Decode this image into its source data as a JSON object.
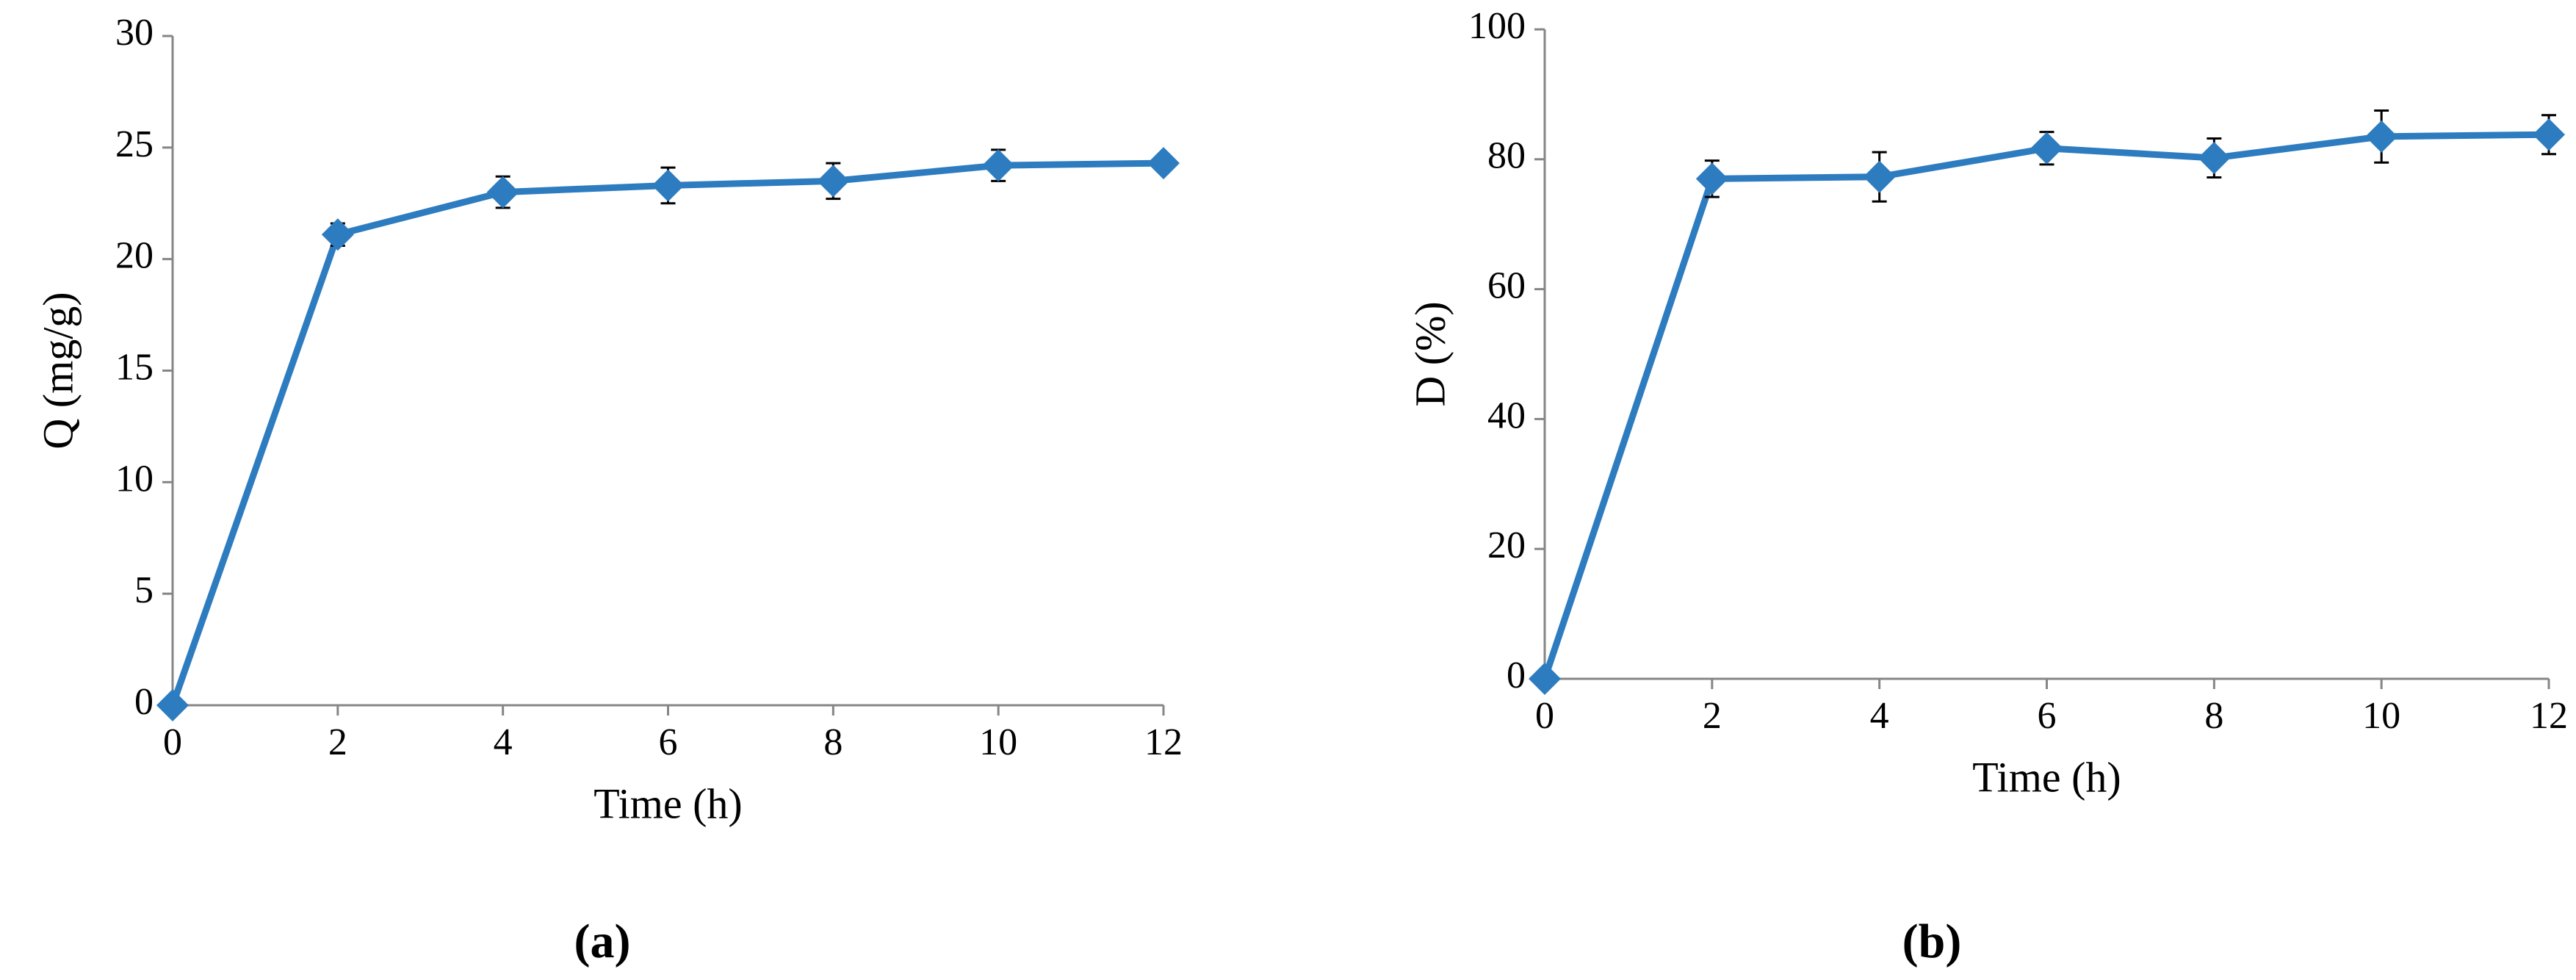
{
  "chart_data": [
    {
      "type": "line",
      "panel_label": "(a)",
      "x_label": "Time (h)",
      "y_label": "Q (mg/g)",
      "x": [
        0,
        2,
        4,
        6,
        8,
        10,
        12
      ],
      "series": [
        {
          "color": "#2e7cc0",
          "values": [
            0,
            21.1,
            23.0,
            23.3,
            23.5,
            24.2,
            24.3
          ],
          "errors": [
            0,
            0.5,
            0.7,
            0.8,
            0.8,
            0.7,
            0.3
          ]
        }
      ],
      "xlim": [
        0,
        12
      ],
      "xticks": [
        0,
        2,
        4,
        6,
        8,
        10,
        12
      ],
      "ylim": [
        0,
        30
      ],
      "yticks": [
        0,
        5,
        10,
        15,
        20,
        25,
        30
      ]
    },
    {
      "type": "line",
      "panel_label": "(b)",
      "x_label": "Time (h)",
      "y_label": "D (%)",
      "x": [
        0,
        2,
        4,
        6,
        8,
        10,
        12
      ],
      "series": [
        {
          "color": "#2e7cc0",
          "values": [
            0,
            77.0,
            77.3,
            81.7,
            80.2,
            83.5,
            83.8
          ],
          "errors": [
            0,
            2.8,
            3.8,
            2.5,
            3.0,
            4.0,
            3.0
          ]
        }
      ],
      "xlim": [
        0,
        12
      ],
      "xticks": [
        0,
        2,
        4,
        6,
        8,
        10,
        12
      ],
      "ylim": [
        0,
        100
      ],
      "yticks": [
        0,
        20,
        40,
        60,
        80,
        100
      ]
    }
  ]
}
